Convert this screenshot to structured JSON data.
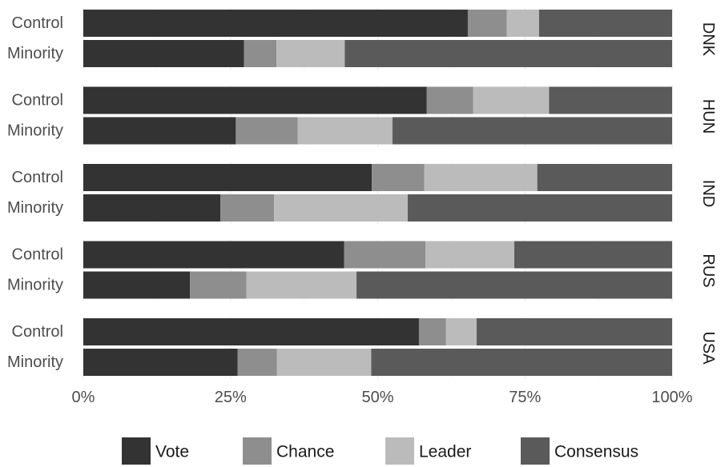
{
  "chart_data": {
    "type": "bar",
    "orientation": "horizontal",
    "stacked": "percent",
    "title": "",
    "xlabel": "",
    "ylabel": "",
    "xlim": [
      0,
      1
    ],
    "x_ticks": [
      "0%",
      "25%",
      "50%",
      "75%",
      "100%"
    ],
    "x_tick_values": [
      0,
      0.25,
      0.5,
      0.75,
      1
    ],
    "grid": true,
    "legend_position": "bottom",
    "series": [
      {
        "name": "Vote",
        "color": "#333333"
      },
      {
        "name": "Chance",
        "color": "#8e8e8e"
      },
      {
        "name": "Leader",
        "color": "#bbbbbb"
      },
      {
        "name": "Consensus",
        "color": "#5a5a5a"
      }
    ],
    "facets": [
      {
        "label": "DNK",
        "rows": [
          {
            "label": "Control",
            "values": [
              0.653,
              0.066,
              0.055,
              0.226
            ]
          },
          {
            "label": "Minority",
            "values": [
              0.273,
              0.055,
              0.116,
              0.556
            ]
          }
        ]
      },
      {
        "label": "HUN",
        "rows": [
          {
            "label": "Control",
            "values": [
              0.583,
              0.079,
              0.129,
              0.209
            ]
          },
          {
            "label": "Minority",
            "values": [
              0.259,
              0.105,
              0.161,
              0.475
            ]
          }
        ]
      },
      {
        "label": "IND",
        "rows": [
          {
            "label": "Control",
            "values": [
              0.49,
              0.089,
              0.192,
              0.229
            ]
          },
          {
            "label": "Minority",
            "values": [
              0.233,
              0.091,
              0.227,
              0.449
            ]
          }
        ]
      },
      {
        "label": "RUS",
        "rows": [
          {
            "label": "Control",
            "values": [
              0.443,
              0.138,
              0.151,
              0.268
            ]
          },
          {
            "label": "Minority",
            "values": [
              0.181,
              0.096,
              0.187,
              0.536
            ]
          }
        ]
      },
      {
        "label": "USA",
        "rows": [
          {
            "label": "Control",
            "values": [
              0.57,
              0.046,
              0.052,
              0.332
            ]
          },
          {
            "label": "Minority",
            "values": [
              0.262,
              0.067,
              0.16,
              0.511
            ]
          }
        ]
      }
    ]
  }
}
